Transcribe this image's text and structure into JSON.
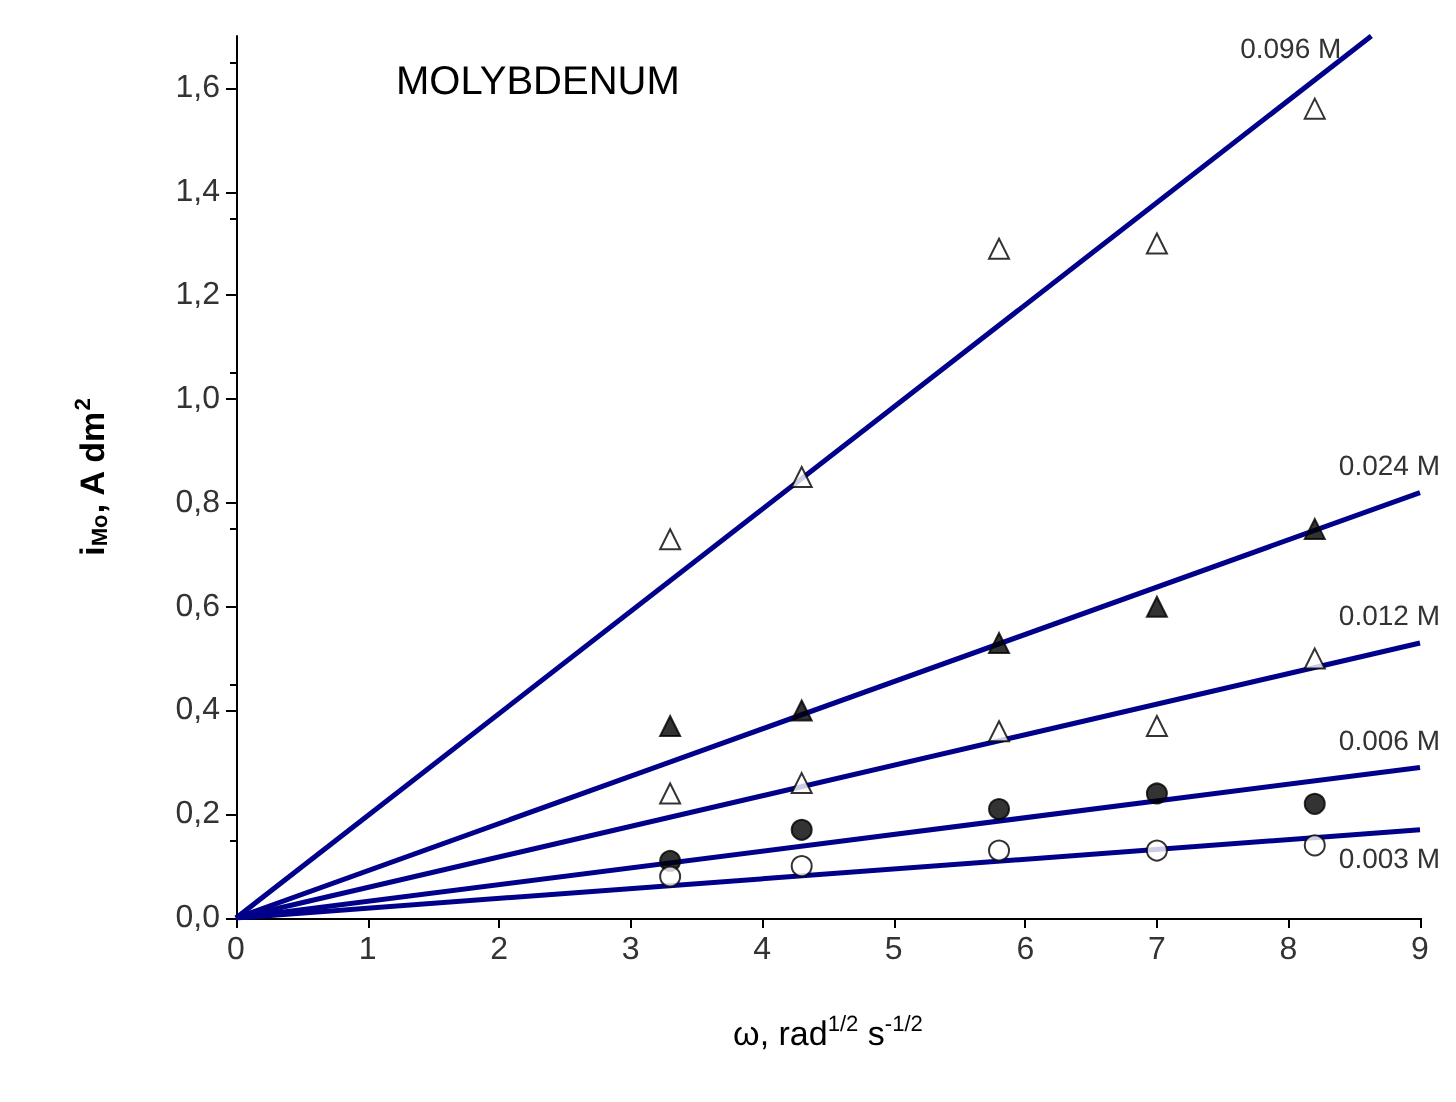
{
  "chart_data": {
    "type": "scatter",
    "title": "MOLYBDENUM",
    "xlabel": "ω, rad$^{1/2}$ s$^{-1/2}$",
    "ylabel": "i$_{Mo}$, A dm$^{2}$",
    "x": [
      3.3,
      4.3,
      5.8,
      7.0,
      8.2
    ],
    "series": [
      {
        "color": "#ffffff",
        "marker": "triangle",
        "values": [
          0.73,
          0.85,
          1.29,
          1.3,
          1.56
        ]
      },
      {
        "color": "#000000",
        "marker": "triangle",
        "values": [
          0.37,
          0.4,
          0.53,
          0.6,
          0.75
        ]
      },
      {
        "color": "#ffffff",
        "marker": "triangle",
        "values": [
          0.24,
          0.26,
          0.36,
          0.37,
          0.5
        ]
      },
      {
        "color": "#000000",
        "marker": "circle",
        "values": [
          0.11,
          0.17,
          0.21,
          0.24,
          0.22
        ]
      },
      {
        "color": "#ffffff",
        "marker": "circle",
        "values": [
          0.08,
          0.1,
          0.13,
          0.13,
          0.14
        ]
      },
      {
        "type": "line",
        "name": "0.096 M",
        "color": "#00008b",
        "x": [
          0,
          8.63
        ],
        "values": [
          0,
          1.7
        ]
      },
      {
        "type": "line",
        "name": "0.024 M",
        "color": "#00008b",
        "x": [
          0,
          9
        ],
        "values": [
          0,
          0.82
        ]
      },
      {
        "type": "line",
        "name": "0.012 M",
        "color": "#00008b",
        "x": [
          0,
          9
        ],
        "values": [
          0,
          0.53
        ]
      },
      {
        "type": "line",
        "name": "0.006 M",
        "color": "#00008b",
        "x": [
          0,
          9
        ],
        "values": [
          0,
          0.29
        ]
      },
      {
        "type": "line",
        "name": "0.003 M",
        "color": "#00008b",
        "x": [
          0,
          9
        ],
        "values": [
          0,
          0.17
        ]
      }
    ],
    "xlim": [
      0,
      9
    ],
    "xticks": [
      0,
      1,
      2,
      3,
      4,
      5,
      6,
      7,
      8,
      9
    ],
    "ylim": [
      0,
      1.7
    ],
    "yticks": [
      {
        "value": 0,
        "label": "0,0"
      },
      {
        "value": 0.2,
        "label": "0,2"
      },
      {
        "value": 0.4,
        "label": "0,4"
      },
      {
        "value": 0.6,
        "label": "0,6"
      },
      {
        "value": 0.8,
        "label": "0,8"
      },
      {
        "value": 1.0,
        "label": "1,0"
      },
      {
        "value": 1.2,
        "label": "1,2"
      },
      {
        "value": 1.4,
        "label": "1,4"
      },
      {
        "value": 1.6,
        "label": "1,6"
      }
    ],
    "grid": false,
    "legend": false,
    "line_style": "solid"
  }
}
